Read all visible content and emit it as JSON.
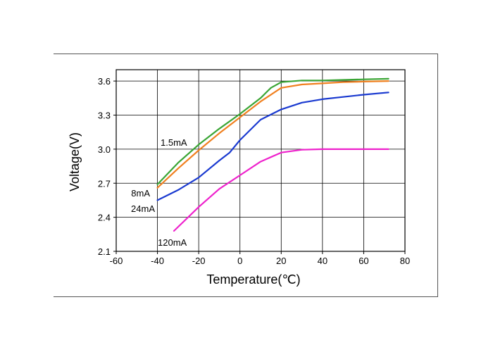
{
  "chart_data": {
    "type": "line",
    "title": "",
    "xlabel": "Temperature(℃)",
    "ylabel": "Voltage(V)",
    "xlim": [
      -60,
      80
    ],
    "ylim": [
      2.1,
      3.7
    ],
    "x_ticks": [
      "-60",
      "-40",
      "-20",
      "0",
      "20",
      "40",
      "60",
      "80"
    ],
    "y_ticks": [
      "2.1",
      "2.4",
      "2.7",
      "3.0",
      "3.3",
      "3.6"
    ],
    "grid": true,
    "series": [
      {
        "name": "1.5mA",
        "color": "#3aa535",
        "x": [
          -40,
          -30,
          -20,
          -10,
          0,
          10,
          15,
          20,
          30,
          40,
          50,
          60,
          72
        ],
        "y": [
          2.69,
          2.88,
          3.04,
          3.18,
          3.31,
          3.45,
          3.54,
          3.59,
          3.605,
          3.605,
          3.61,
          3.615,
          3.62
        ]
      },
      {
        "name": "8mA",
        "color": "#f08020",
        "x": [
          -40,
          -30,
          -20,
          -10,
          0,
          10,
          20,
          30,
          40,
          50,
          60,
          72
        ],
        "y": [
          2.66,
          2.83,
          2.99,
          3.14,
          3.28,
          3.42,
          3.54,
          3.57,
          3.58,
          3.59,
          3.595,
          3.6
        ]
      },
      {
        "name": "24mA",
        "color": "#1a3ad0",
        "x": [
          -40,
          -30,
          -20,
          -10,
          -5,
          0,
          10,
          20,
          30,
          40,
          50,
          60,
          72
        ],
        "y": [
          2.55,
          2.64,
          2.75,
          2.9,
          2.97,
          3.08,
          3.26,
          3.35,
          3.41,
          3.44,
          3.46,
          3.48,
          3.5
        ]
      },
      {
        "name": "120mA",
        "color": "#ee22cc",
        "x": [
          -32,
          -20,
          -10,
          0,
          10,
          20,
          30,
          40,
          50,
          60,
          72
        ],
        "y": [
          2.28,
          2.49,
          2.65,
          2.77,
          2.89,
          2.97,
          2.995,
          3.0,
          3.0,
          3.0,
          3.0
        ]
      }
    ]
  }
}
